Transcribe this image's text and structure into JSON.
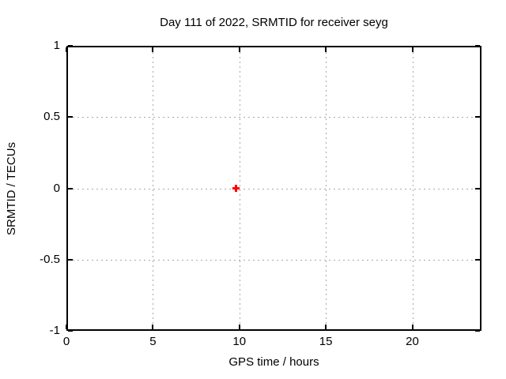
{
  "chart_data": {
    "type": "scatter",
    "title": "Day 111 of 2022, SRMTID for receiver seyg",
    "xlabel": "GPS time / hours",
    "ylabel": "SRMTID / TECUs",
    "xlim": [
      0,
      24
    ],
    "ylim": [
      -1,
      1
    ],
    "grid": true,
    "grid_color": "#a8a8a8",
    "axis_color": "#000000",
    "legend": "none",
    "xticks": [
      {
        "value": 0,
        "label": "0"
      },
      {
        "value": 5,
        "label": "5"
      },
      {
        "value": 10,
        "label": "10"
      },
      {
        "value": 15,
        "label": "15"
      },
      {
        "value": 20,
        "label": "20"
      }
    ],
    "yticks": [
      {
        "value": -1,
        "label": "-1"
      },
      {
        "value": -0.5,
        "label": "-0.5"
      },
      {
        "value": 0,
        "label": "0"
      },
      {
        "value": 0.5,
        "label": "0.5"
      },
      {
        "value": 1,
        "label": "1"
      }
    ],
    "series": [
      {
        "name": "SRMTID",
        "marker": "plus",
        "color": "#ff0000",
        "points": [
          {
            "x": 9.8,
            "y": 0.0
          }
        ]
      }
    ]
  }
}
